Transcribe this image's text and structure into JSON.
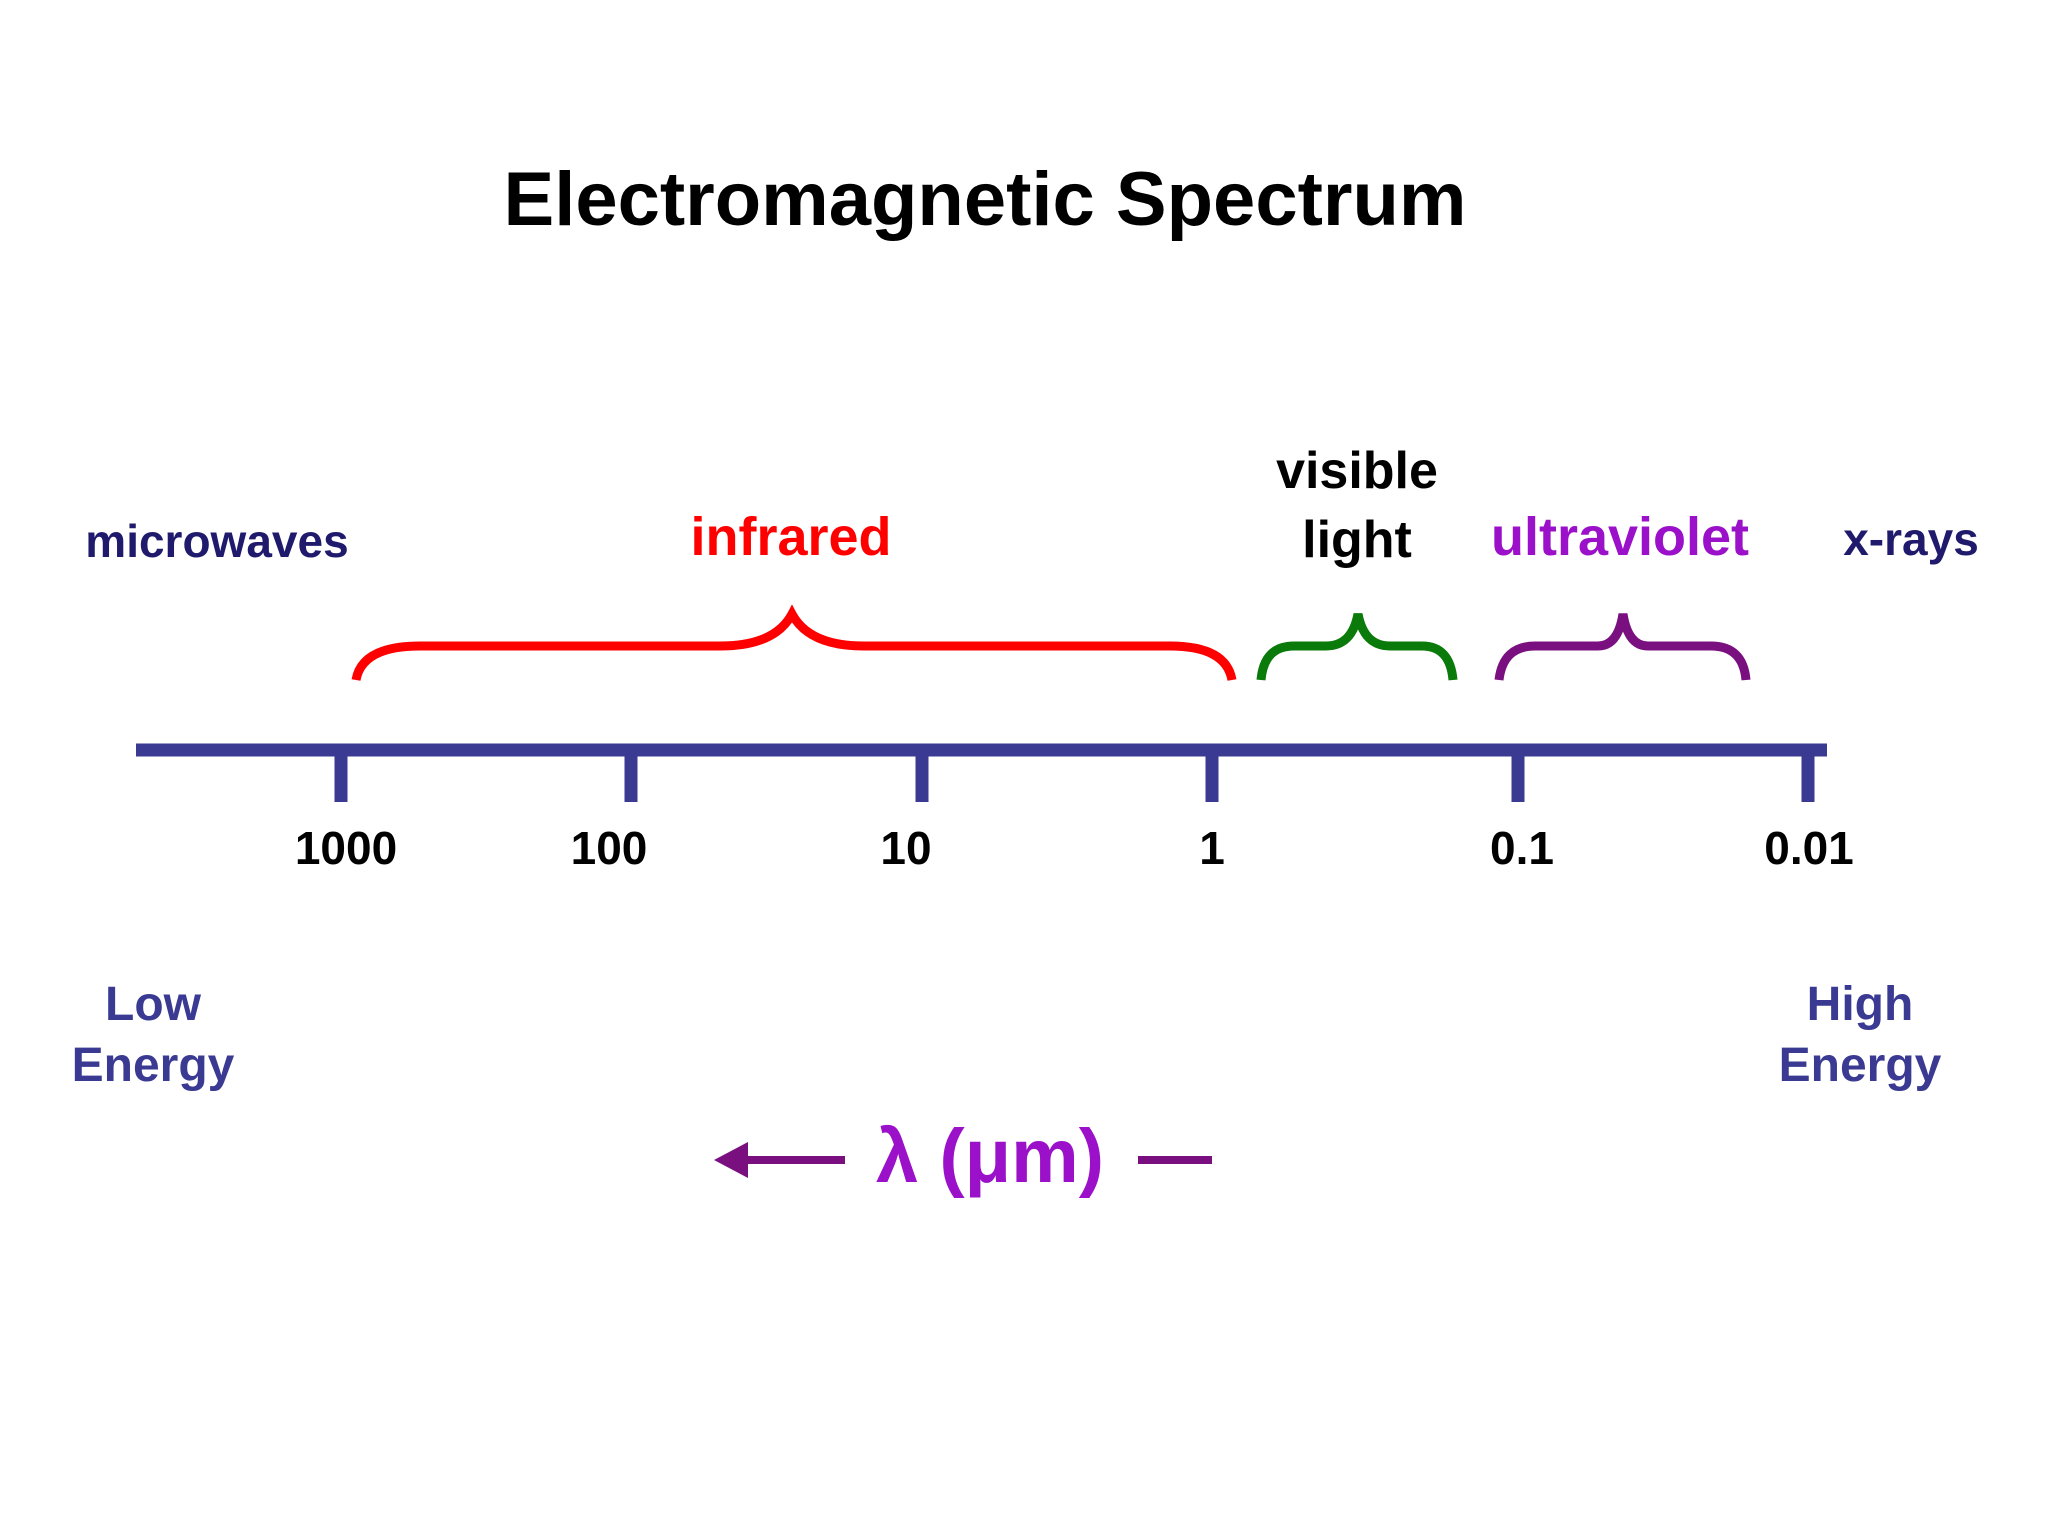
{
  "title": "Electromagnetic Spectrum",
  "regions": {
    "microwaves": {
      "label": "microwaves",
      "color": "#1f1a6b"
    },
    "infrared": {
      "label": "infrared",
      "color": "#ff0000"
    },
    "visible": {
      "line1": "visible",
      "line2": "light",
      "color": "#000000",
      "bracket_color": "#0a7a0a"
    },
    "ultraviolet": {
      "label": "ultraviolet",
      "color": "#9b10c9",
      "bracket_color": "#7a1080"
    },
    "xrays": {
      "label": "x-rays",
      "color": "#1f1a6b"
    }
  },
  "axis": {
    "color": "#3a3a93",
    "ticks": [
      "1000",
      "100",
      "10",
      "1",
      "0.1",
      "0.01"
    ],
    "unit_label": "λ (μm)",
    "unit_color": "#9b10c9",
    "arrow_color": "#7a1080"
  },
  "energy": {
    "low_line1": "Low",
    "low_line2": "Energy",
    "high_line1": "High",
    "high_line2": "Energy",
    "color": "#3a3a93"
  }
}
